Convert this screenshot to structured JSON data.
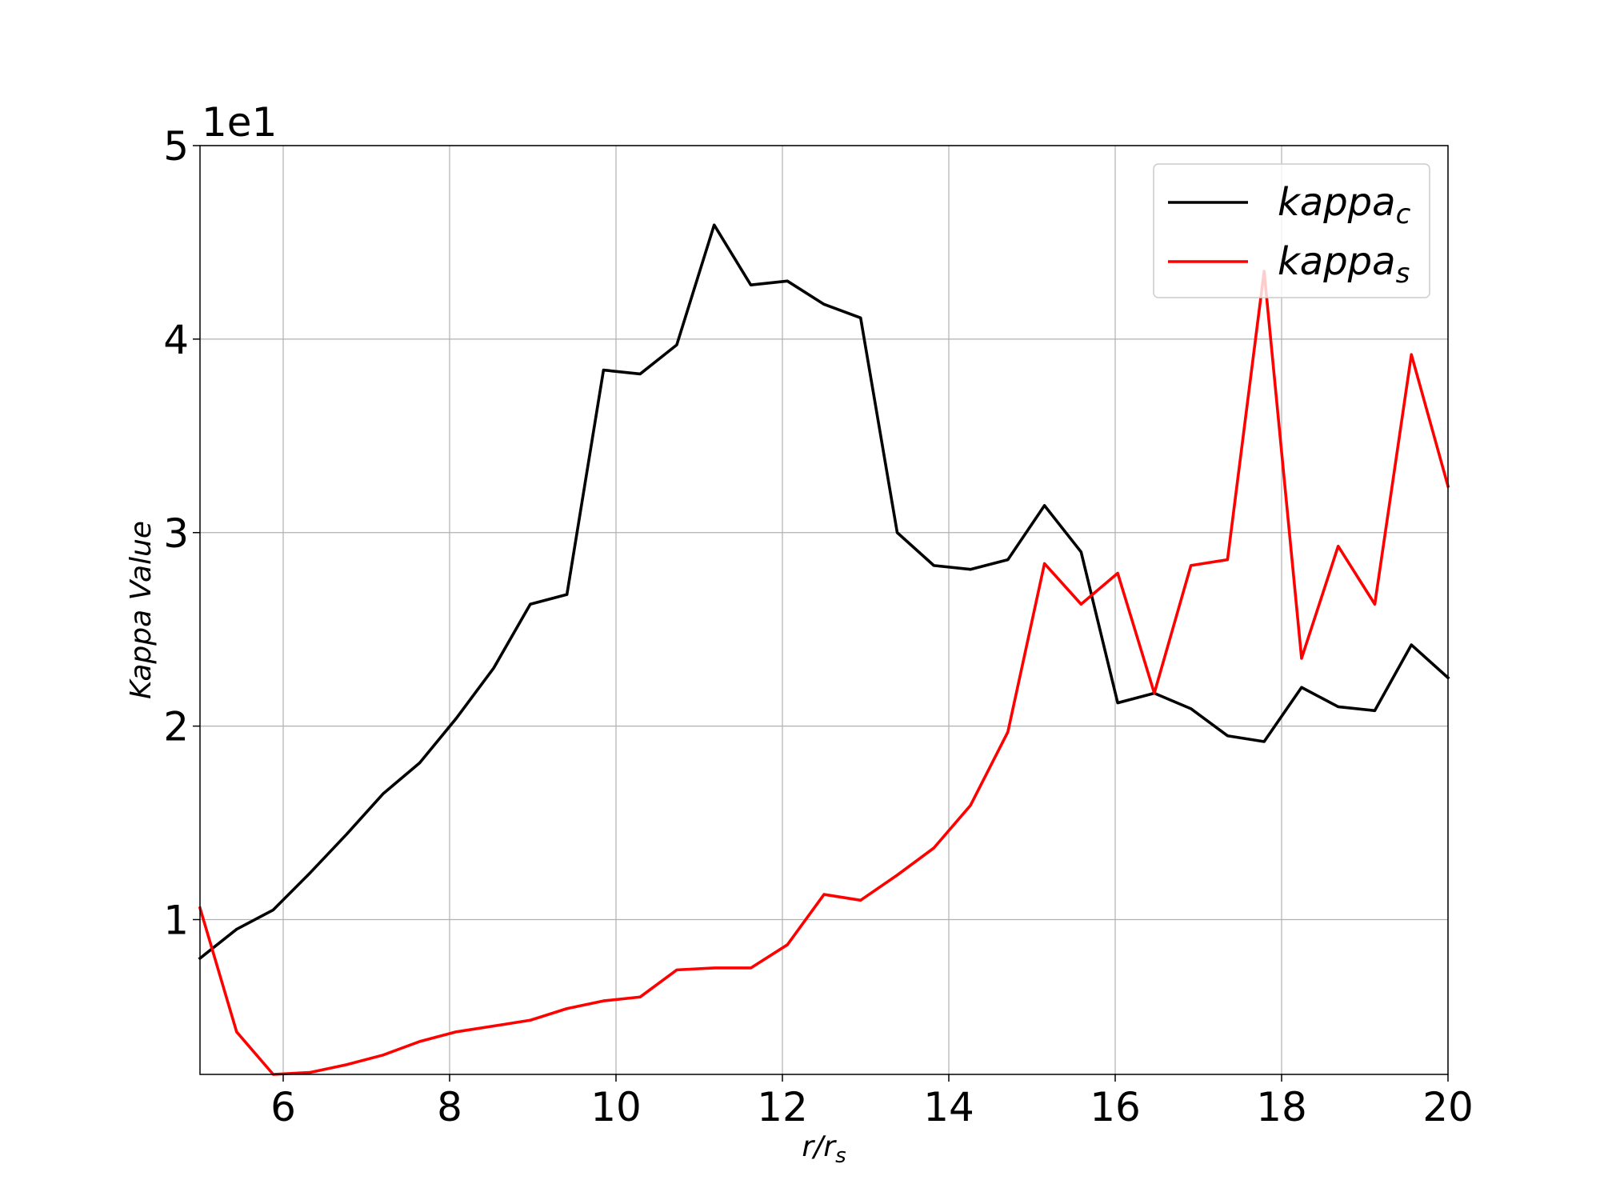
{
  "chart_data": {
    "type": "line",
    "xlabel_base": "r/r",
    "xlabel_sub": "s",
    "ylabel": "Kappa Value",
    "y_offset_text": "1e1",
    "xlim": [
      5,
      20
    ],
    "ylim": [
      2.0,
      50.0
    ],
    "xticks": [
      6,
      8,
      10,
      12,
      14,
      16,
      18,
      20
    ],
    "xtick_labels": [
      "6",
      "8",
      "10",
      "12",
      "14",
      "16",
      "18",
      "20"
    ],
    "yticks": [
      10,
      20,
      30,
      40,
      50
    ],
    "ytick_labels": [
      "1",
      "2",
      "3",
      "4",
      "5"
    ],
    "grid": true,
    "legend_position": "upper-right",
    "x": [
      5.0,
      5.44,
      5.88,
      6.32,
      6.76,
      7.2,
      7.64,
      8.08,
      8.53,
      8.97,
      9.41,
      9.85,
      10.29,
      10.73,
      11.18,
      11.62,
      12.06,
      12.5,
      12.94,
      13.38,
      13.82,
      14.26,
      14.71,
      15.15,
      15.59,
      16.03,
      16.47,
      16.91,
      17.35,
      17.79,
      18.24,
      18.68,
      19.12,
      19.56,
      20.0
    ],
    "series": [
      {
        "name_base": "kappa",
        "name_sub": "c",
        "color": "#000000",
        "values": [
          8.0,
          9.5,
          10.5,
          12.4,
          14.4,
          16.5,
          18.1,
          20.4,
          23.0,
          26.3,
          26.8,
          38.4,
          38.2,
          39.7,
          45.9,
          42.8,
          43.0,
          41.8,
          41.1,
          30.0,
          28.3,
          28.1,
          28.6,
          31.4,
          29.0,
          21.2,
          21.7,
          20.9,
          19.5,
          19.2,
          22.0,
          21.0,
          20.8,
          24.2,
          22.5
        ]
      },
      {
        "name_base": "kappa",
        "name_sub": "s",
        "color": "#ff0000",
        "values": [
          10.6,
          4.2,
          2.0,
          2.1,
          2.5,
          3.0,
          3.7,
          4.2,
          4.5,
          4.8,
          5.4,
          5.8,
          6.0,
          7.4,
          7.5,
          7.5,
          8.7,
          11.3,
          11.0,
          12.3,
          13.7,
          15.9,
          19.7,
          28.4,
          26.3,
          27.9,
          21.7,
          28.3,
          28.6,
          43.5,
          23.5,
          29.3,
          26.3,
          39.2,
          32.4
        ]
      }
    ]
  }
}
